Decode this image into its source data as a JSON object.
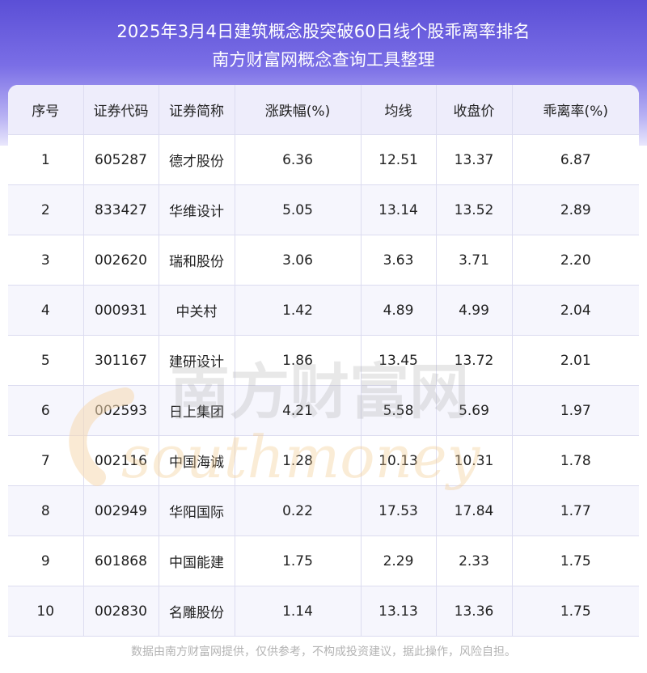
{
  "header": {
    "title_line1": "2025年3月4日建筑概念股突破60日线个股乖离率排名",
    "title_line2": "南方财富网概念查询工具整理"
  },
  "table": {
    "columns": [
      "序号",
      "证券代码",
      "证券简称",
      "涨跌幅(%)",
      "均线",
      "收盘价",
      "乖离率(%)"
    ],
    "rows": [
      [
        "1",
        "605287",
        "德才股份",
        "6.36",
        "12.51",
        "13.37",
        "6.87"
      ],
      [
        "2",
        "833427",
        "华维设计",
        "5.05",
        "13.14",
        "13.52",
        "2.89"
      ],
      [
        "3",
        "002620",
        "瑞和股份",
        "3.06",
        "3.63",
        "3.71",
        "2.20"
      ],
      [
        "4",
        "000931",
        "中关村",
        "1.42",
        "4.89",
        "4.99",
        "2.04"
      ],
      [
        "5",
        "301167",
        "建研设计",
        "1.86",
        "13.45",
        "13.72",
        "2.01"
      ],
      [
        "6",
        "002593",
        "日上集团",
        "4.21",
        "5.58",
        "5.69",
        "1.97"
      ],
      [
        "7",
        "002116",
        "中国海诚",
        "1.28",
        "10.13",
        "10.31",
        "1.78"
      ],
      [
        "8",
        "002949",
        "华阳国际",
        "0.22",
        "17.53",
        "17.84",
        "1.77"
      ],
      [
        "9",
        "601868",
        "中国能建",
        "1.75",
        "2.29",
        "2.33",
        "1.75"
      ],
      [
        "10",
        "002830",
        "名雕股份",
        "1.14",
        "13.13",
        "13.36",
        "1.75"
      ]
    ]
  },
  "watermark": {
    "cn": "南方财富网",
    "en": "southmoney"
  },
  "footer": {
    "disclaimer": "数据由南方财富网提供，仅供参考，不构成投资建议，据此操作，风险自担。"
  },
  "colors": {
    "banner_top": "#5b4fd6",
    "header_bg": "#eeedfb",
    "stripe_bg": "#f6f6fd",
    "grid": "#dcdcf0",
    "footer_text": "#b3b3b3"
  }
}
